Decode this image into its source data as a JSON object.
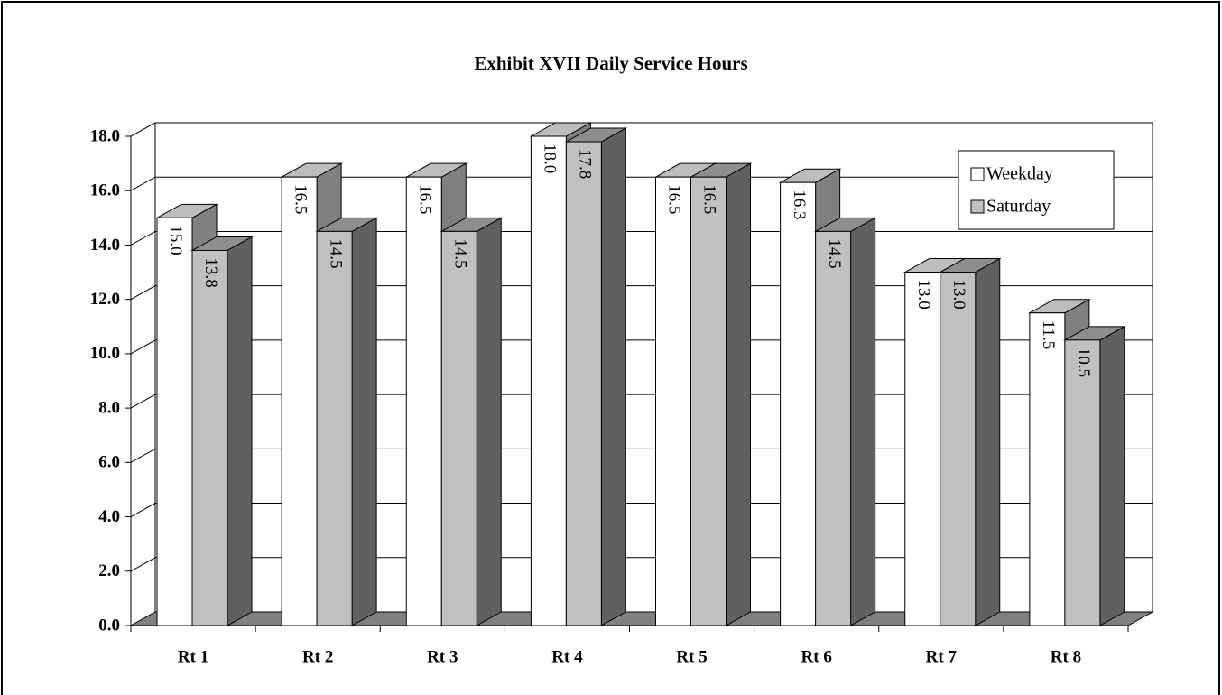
{
  "chart_data": {
    "type": "bar3d",
    "title": "Exhibit XVII Daily Service Hours",
    "categories": [
      "Rt 1",
      "Rt 2",
      "Rt 3",
      "Rt 4",
      "Rt 5",
      "Rt 6",
      "Rt 7",
      "Rt 8"
    ],
    "series": [
      {
        "name": "Weekday",
        "color": "#ffffff",
        "values": [
          15.0,
          16.5,
          16.5,
          18.0,
          16.5,
          16.3,
          13.0,
          11.5
        ],
        "value_labels": [
          "15.0",
          "16.5",
          "16.5",
          "18.0",
          "16.5",
          "16.3",
          "13.0",
          "11.5"
        ]
      },
      {
        "name": "Saturday",
        "color": "#c0c0c0",
        "values": [
          13.8,
          14.5,
          14.5,
          17.8,
          16.5,
          14.5,
          13.0,
          10.5
        ],
        "value_labels": [
          "13.8",
          "14.5",
          "14.5",
          "17.8",
          "16.5",
          "14.5",
          "13.0",
          "10.5"
        ]
      }
    ],
    "ylim": [
      0,
      18
    ],
    "yticks": [
      {
        "value": 0,
        "label": "0.0"
      },
      {
        "value": 2,
        "label": "2.0"
      },
      {
        "value": 4,
        "label": "4.0"
      },
      {
        "value": 6,
        "label": "6.0"
      },
      {
        "value": 8,
        "label": "8.0"
      },
      {
        "value": 10,
        "label": "10.0"
      },
      {
        "value": 12,
        "label": "12.0"
      },
      {
        "value": 14,
        "label": "14.0"
      },
      {
        "value": 16,
        "label": "16.0"
      },
      {
        "value": 18,
        "label": "18.0"
      }
    ],
    "grid": true,
    "legend": "upper right"
  }
}
